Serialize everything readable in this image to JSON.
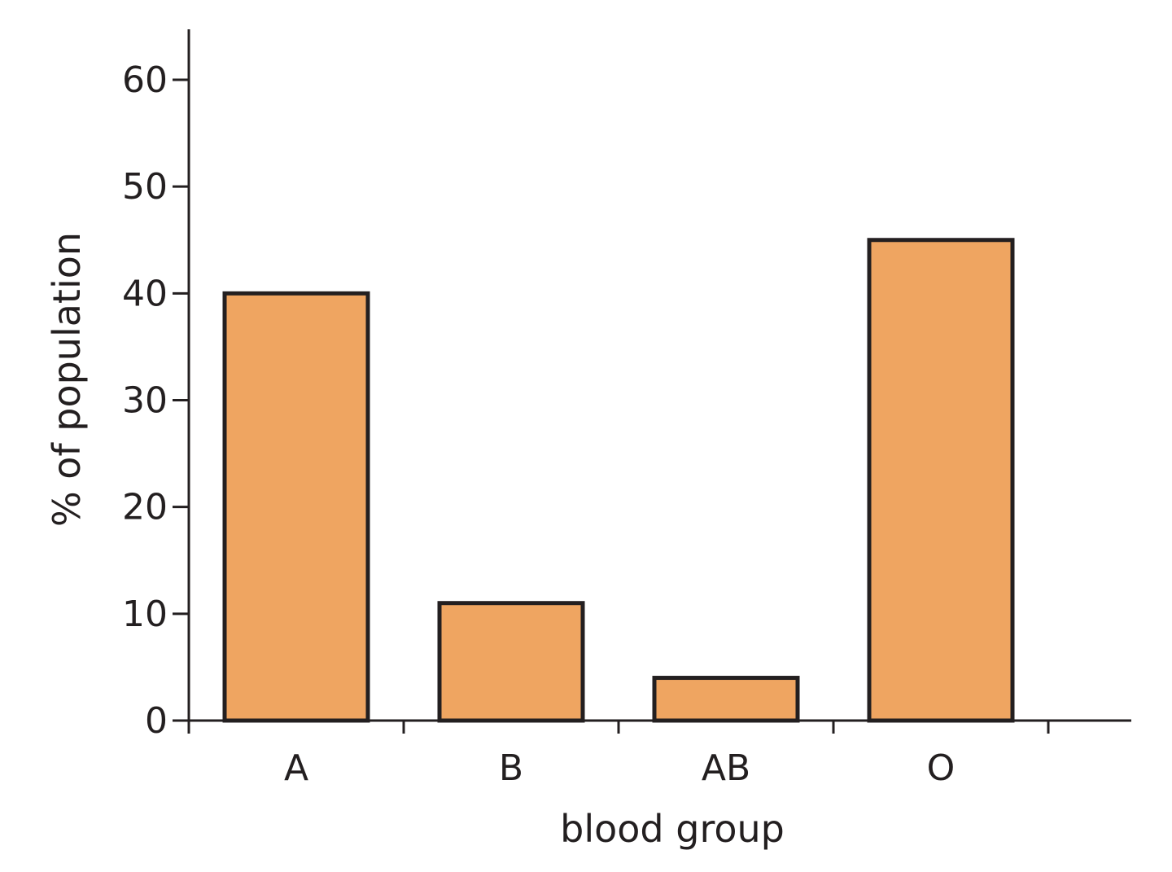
{
  "chart_data": {
    "type": "bar",
    "categories": [
      "A",
      "B",
      "AB",
      "O"
    ],
    "values": [
      40,
      11,
      4,
      45
    ],
    "xlabel": "blood group",
    "ylabel": "% of population",
    "ylim": [
      0,
      60
    ],
    "yticks": [
      0,
      10,
      20,
      30,
      40,
      50,
      60
    ],
    "grid": false,
    "legend": "none",
    "colors": {
      "bar_fill": "#efa561",
      "bar_stroke": "#231f20",
      "axis": "#231f20"
    }
  }
}
